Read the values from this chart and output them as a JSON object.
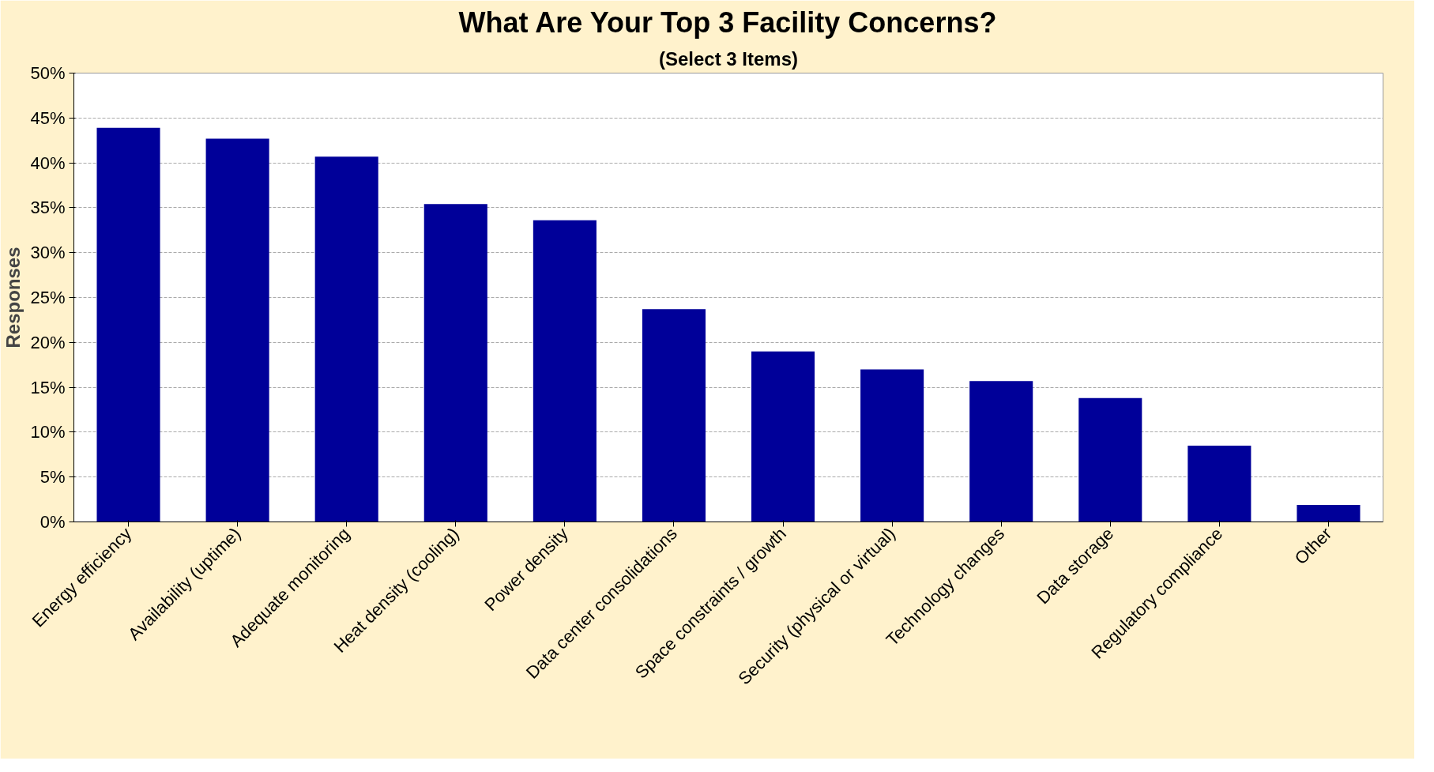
{
  "chart_data": {
    "type": "bar",
    "title": "What Are Your Top 3 Facility Concerns?",
    "subtitle": "(Select 3 Items)",
    "ylabel": "Responses",
    "categories": [
      "Energy efficiency",
      "Availability (uptime)",
      "Adequate monitoring",
      "Heat density (cooling)",
      "Power density",
      "Data center consolidations",
      "Space constraints / growth",
      "Security (physical or virtual)",
      "Technology changes",
      "Data storage",
      "Regulatory compliance",
      "Other"
    ],
    "values": [
      43.9,
      42.7,
      40.7,
      35.4,
      33.6,
      23.7,
      19.0,
      17.0,
      15.7,
      13.8,
      8.5,
      1.9
    ],
    "color": "#000099",
    "ylim": [
      0,
      50
    ],
    "yticks": [
      {
        "value": 0,
        "label": "0%"
      },
      {
        "value": 5,
        "label": "5%"
      },
      {
        "value": 10,
        "label": "10%"
      },
      {
        "value": 15,
        "label": "15%"
      },
      {
        "value": 20,
        "label": "20%"
      },
      {
        "value": 25,
        "label": "25%"
      },
      {
        "value": 30,
        "label": "30%"
      },
      {
        "value": 35,
        "label": "35%"
      },
      {
        "value": 40,
        "label": "40%"
      },
      {
        "value": 45,
        "label": "45%"
      },
      {
        "value": 50,
        "label": "50%"
      }
    ],
    "grid": "y"
  }
}
